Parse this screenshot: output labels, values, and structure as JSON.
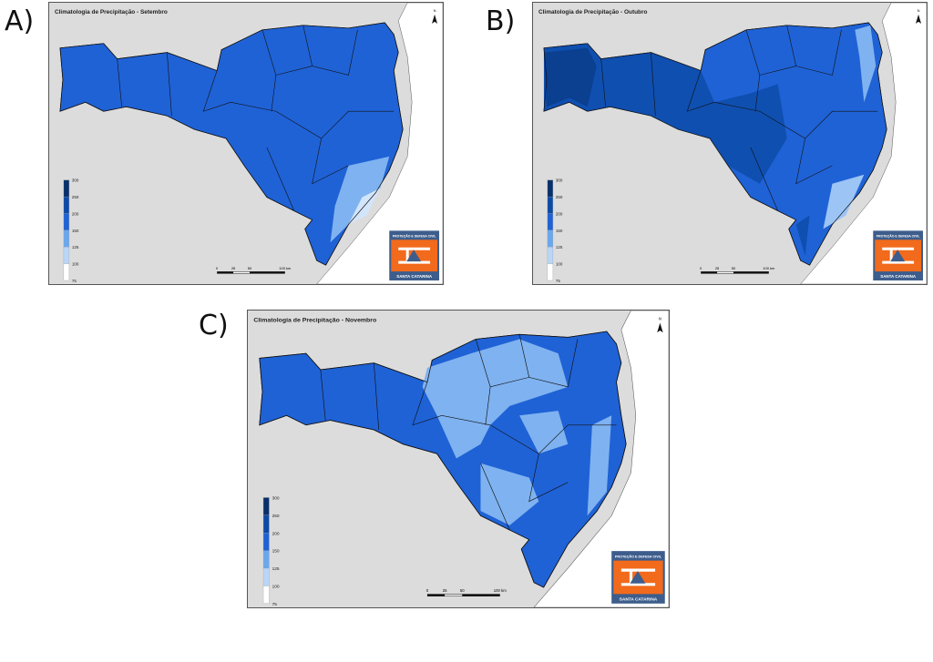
{
  "panels": [
    {
      "label": "A)",
      "title": "Climatologia de Precipitação - Setembro"
    },
    {
      "label": "B)",
      "title": "Climatologia de Precipitação - Outubro"
    },
    {
      "label": "C)",
      "title": "Climatologia de Precipitação - Novembro"
    }
  ],
  "legend": [
    "300",
    "250",
    "200",
    "150",
    "125",
    "100",
    "75"
  ],
  "scale_bar": [
    "0",
    "25",
    "50",
    "100 km"
  ],
  "north": "N",
  "logo": {
    "top": "PROTEÇÃO E DEFESA CIVIL",
    "bottom": "SANTA CATARINA"
  }
}
